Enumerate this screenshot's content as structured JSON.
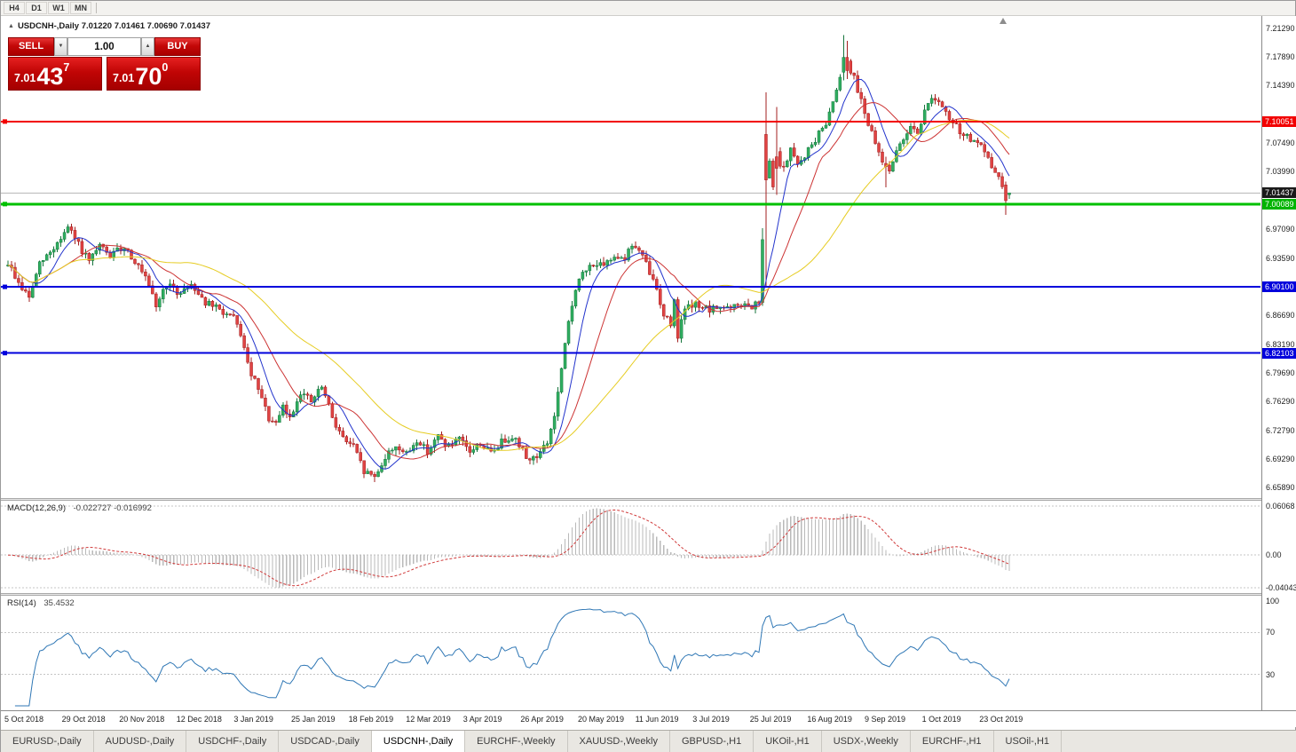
{
  "icons": {
    "symbol_marker": "▲",
    "volume_decrease": "▼",
    "volume_increase": "▲"
  },
  "toolbar": {
    "timeframe_buttons": [
      "H4",
      "D1",
      "W1",
      "MN"
    ]
  },
  "chart_header": {
    "title": "USDCNH-,Daily 7.01220 7.01461 7.00690 7.01437"
  },
  "trade_panel": {
    "sell_label": "SELL",
    "buy_label": "BUY",
    "volume": "1.00",
    "bid": {
      "prefix": "7.01",
      "big": "43",
      "sup": "7"
    },
    "ask": {
      "prefix": "7.01",
      "big": "70",
      "sup": "0"
    }
  },
  "price_scale": {
    "ticks": [
      "7.21290",
      "7.17890",
      "7.14390",
      "7.07490",
      "7.03990",
      "6.97090",
      "6.93590",
      "6.86690",
      "6.83190",
      "6.79690",
      "6.76290",
      "6.72790",
      "6.69290",
      "6.65890"
    ],
    "badges": [
      {
        "text": "7.10051",
        "price": 7.10051,
        "bg": "#f20000"
      },
      {
        "text": "7.01437",
        "price": 7.01437,
        "bg": "#1a1a1a"
      },
      {
        "text": "7.00089",
        "price": 7.00089,
        "bg": "#00b400"
      },
      {
        "text": "6.90100",
        "price": 6.901,
        "bg": "#0000dc"
      },
      {
        "text": "6.82103",
        "price": 6.82103,
        "bg": "#0000dc"
      }
    ]
  },
  "date_axis": {
    "labels": [
      "5 Oct 2018",
      "29 Oct 2018",
      "20 Nov 2018",
      "12 Dec 2018",
      "3 Jan 2019",
      "25 Jan 2019",
      "18 Feb 2019",
      "12 Mar 2019",
      "3 Apr 2019",
      "26 Apr 2019",
      "20 May 2019",
      "11 Jun 2019",
      "3 Jul 2019",
      "25 Jul 2019",
      "16 Aug 2019",
      "9 Sep 2019",
      "1 Oct 2019",
      "23 Oct 2019"
    ]
  },
  "tabs": {
    "items": [
      "EURUSD-,Daily",
      "AUDUSD-,Daily",
      "USDCHF-,Daily",
      "USDCAD-,Daily",
      "USDCNH-,Daily",
      "EURCHF-,Weekly",
      "XAUUSD-,Weekly",
      "GBPUSD-,H1",
      "UKOil-,H1",
      "USDX-,Weekly",
      "EURCHF-,H1",
      "USOil-,H1"
    ],
    "active": "USDCNH-,Daily"
  },
  "chart_data": {
    "type": "candlestick",
    "symbol": "USDCNH-",
    "period": "Daily",
    "ohlc": {
      "open": 7.0122,
      "high": 7.01461,
      "low": 7.0069,
      "close": 7.01437
    },
    "current_price": 7.01437,
    "price_axis": {
      "max": 7.2129,
      "min": 6.6589
    },
    "n_candles": 285,
    "price_keyframes": [
      [
        0,
        6.93
      ],
      [
        3,
        6.905
      ],
      [
        6,
        6.888
      ],
      [
        9,
        6.928
      ],
      [
        13,
        6.948
      ],
      [
        17,
        6.972
      ],
      [
        20,
        6.952
      ],
      [
        23,
        6.93
      ],
      [
        26,
        6.95
      ],
      [
        29,
        6.938
      ],
      [
        33,
        6.95
      ],
      [
        36,
        6.932
      ],
      [
        39,
        6.91
      ],
      [
        42,
        6.878
      ],
      [
        45,
        6.905
      ],
      [
        48,
        6.893
      ],
      [
        52,
        6.905
      ],
      [
        56,
        6.882
      ],
      [
        60,
        6.873
      ],
      [
        64,
        6.862
      ],
      [
        66,
        6.845
      ],
      [
        68,
        6.806
      ],
      [
        71,
        6.776
      ],
      [
        74,
        6.742
      ],
      [
        76,
        6.733
      ],
      [
        78,
        6.756
      ],
      [
        80,
        6.742
      ],
      [
        83,
        6.775
      ],
      [
        86,
        6.762
      ],
      [
        89,
        6.78
      ],
      [
        92,
        6.744
      ],
      [
        95,
        6.718
      ],
      [
        98,
        6.708
      ],
      [
        101,
        6.678
      ],
      [
        104,
        6.672
      ],
      [
        107,
        6.695
      ],
      [
        110,
        6.71
      ],
      [
        113,
        6.698
      ],
      [
        116,
        6.716
      ],
      [
        119,
        6.703
      ],
      [
        122,
        6.72
      ],
      [
        125,
        6.708
      ],
      [
        128,
        6.716
      ],
      [
        131,
        6.702
      ],
      [
        134,
        6.712
      ],
      [
        137,
        6.7
      ],
      [
        140,
        6.714
      ],
      [
        143,
        6.722
      ],
      [
        146,
        6.703
      ],
      [
        148,
        6.692
      ],
      [
        151,
        6.701
      ],
      [
        153,
        6.713
      ],
      [
        155,
        6.745
      ],
      [
        157,
        6.8
      ],
      [
        159,
        6.858
      ],
      [
        161,
        6.9
      ],
      [
        163,
        6.916
      ],
      [
        166,
        6.93
      ],
      [
        169,
        6.924
      ],
      [
        172,
        6.94
      ],
      [
        175,
        6.936
      ],
      [
        177,
        6.952
      ],
      [
        179,
        6.944
      ],
      [
        181,
        6.928
      ],
      [
        184,
        6.898
      ],
      [
        186,
        6.868
      ],
      [
        188,
        6.856
      ],
      [
        189,
        6.884
      ],
      [
        190,
        6.842
      ],
      [
        191,
        6.866
      ],
      [
        193,
        6.876
      ],
      [
        196,
        6.88
      ],
      [
        199,
        6.871
      ],
      [
        202,
        6.878
      ],
      [
        205,
        6.874
      ],
      [
        208,
        6.88
      ],
      [
        211,
        6.875
      ],
      [
        213,
        6.882
      ],
      [
        214,
        6.958
      ],
      [
        215,
        7.03
      ],
      [
        216,
        7.052
      ],
      [
        217,
        7.022
      ],
      [
        218,
        7.06
      ],
      [
        220,
        7.042
      ],
      [
        222,
        7.068
      ],
      [
        224,
        7.046
      ],
      [
        226,
        7.06
      ],
      [
        228,
        7.072
      ],
      [
        230,
        7.085
      ],
      [
        232,
        7.1
      ],
      [
        234,
        7.125
      ],
      [
        236,
        7.158
      ],
      [
        238,
        7.175
      ],
      [
        240,
        7.152
      ],
      [
        242,
        7.128
      ],
      [
        244,
        7.098
      ],
      [
        246,
        7.072
      ],
      [
        248,
        7.052
      ],
      [
        250,
        7.044
      ],
      [
        252,
        7.062
      ],
      [
        254,
        7.08
      ],
      [
        256,
        7.098
      ],
      [
        258,
        7.088
      ],
      [
        260,
        7.112
      ],
      [
        262,
        7.132
      ],
      [
        264,
        7.122
      ],
      [
        267,
        7.103
      ],
      [
        270,
        7.089
      ],
      [
        273,
        7.079
      ],
      [
        276,
        7.069
      ],
      [
        278,
        7.054
      ],
      [
        280,
        7.04
      ],
      [
        282,
        7.024
      ],
      [
        283,
        7.002
      ],
      [
        284,
        7.0144
      ]
    ],
    "candle_overrides": [
      {
        "i": 214,
        "o": 6.882,
        "h": 6.972,
        "l": 6.878,
        "c": 6.958
      },
      {
        "i": 215,
        "o": 7.085,
        "h": 7.136,
        "l": 6.901,
        "c": 7.03
      },
      {
        "i": 218,
        "o": 7.058,
        "h": 7.118,
        "l": 7.012,
        "c": 7.044
      },
      {
        "i": 237,
        "o": 7.16,
        "h": 7.205,
        "l": 7.15,
        "c": 7.178
      },
      {
        "i": 238,
        "o": 7.178,
        "h": 7.198,
        "l": 7.152,
        "c": 7.162
      },
      {
        "i": 249,
        "o": 7.05,
        "h": 7.058,
        "l": 7.021,
        "c": 7.046
      },
      {
        "i": 283,
        "o": 7.024,
        "h": 7.028,
        "l": 6.988,
        "c": 7.005
      },
      {
        "i": 284,
        "o": 7.0122,
        "h": 7.0146,
        "l": 7.0069,
        "c": 7.0144
      }
    ],
    "horizontal_lines": [
      {
        "price": 7.10051,
        "color": "#f20000",
        "width": 2
      },
      {
        "price": 7.00089,
        "color": "#00c000",
        "width": 3
      },
      {
        "price": 6.901,
        "color": "#0000dc",
        "width": 2
      },
      {
        "price": 6.82103,
        "color": "#0000dc",
        "width": 2
      }
    ],
    "moving_averages": [
      {
        "period": 8,
        "color": "#2233cc"
      },
      {
        "period": 17,
        "color": "#cc3333"
      },
      {
        "period": 44,
        "color": "#e6cc22"
      }
    ],
    "candle_colors": {
      "up_fill": "#2fae60",
      "up_stroke": "#17753d",
      "down_fill": "#e04343",
      "down_stroke": "#a31f1f"
    },
    "macd": {
      "label": "MACD(12,26,9)",
      "values_text": "-0.022727 -0.016992",
      "fast": 12,
      "slow": 26,
      "signal": 9,
      "scale_ticks": [
        {
          "text": "0.06068",
          "value": 0.06068
        },
        {
          "text": "0.00",
          "value": 0
        },
        {
          "text": "-0.04043",
          "value": -0.04043
        }
      ],
      "histogram_color": "#b9b9b9",
      "signal_color": "#d03a3a"
    },
    "rsi": {
      "label": "RSI(14)",
      "value_text": "35.4532",
      "period": 14,
      "levels": [
        70,
        30
      ],
      "line_color": "#2f77b5",
      "scale_ticks": [
        {
          "text": "100",
          "value": 100
        },
        {
          "text": "70",
          "value": 70
        },
        {
          "text": "30",
          "value": 30
        }
      ]
    }
  }
}
